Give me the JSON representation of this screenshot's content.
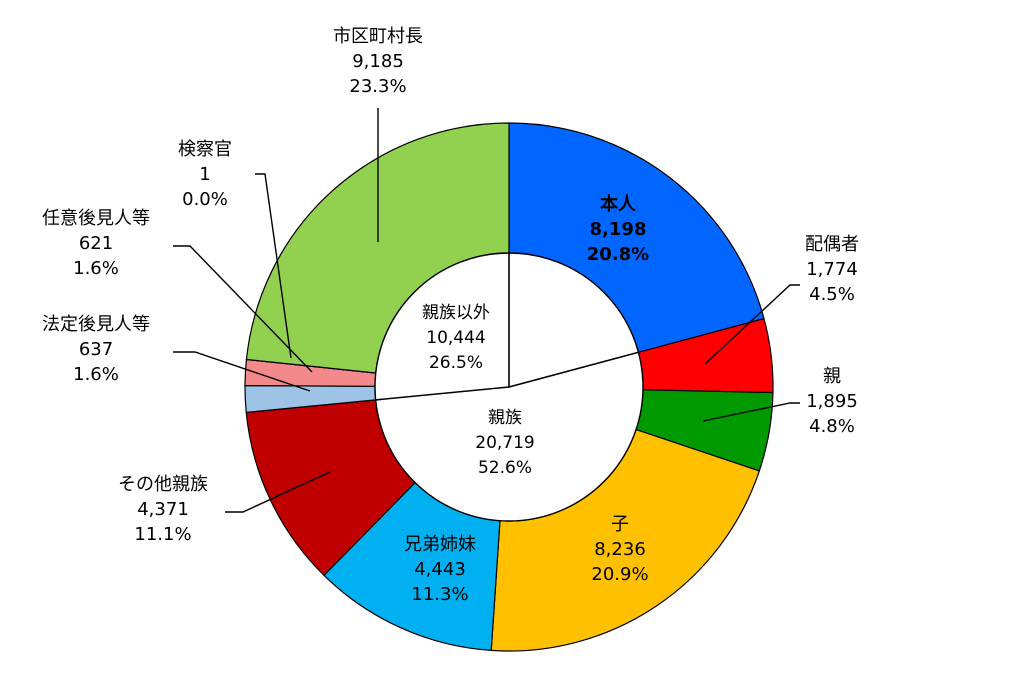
{
  "chart_data": {
    "type": "pie",
    "outer_ring": [
      {
        "name": "本人",
        "value": "8,198",
        "percent": "20.8%",
        "color": "#0066FF",
        "bold": true
      },
      {
        "name": "配偶者",
        "value": "1,774",
        "percent": "4.5%",
        "color": "#FF0000"
      },
      {
        "name": "親",
        "value": "1,895",
        "percent": "4.8%",
        "color": "#009900"
      },
      {
        "name": "子",
        "value": "8,236",
        "percent": "20.9%",
        "color": "#FFC000"
      },
      {
        "name": "兄弟姉妹",
        "value": "4,443",
        "percent": "11.3%",
        "color": "#00B0F0"
      },
      {
        "name": "その他親族",
        "value": "4,371",
        "percent": "11.1%",
        "color": "#C00000"
      },
      {
        "name": "法定後見人等",
        "value": "637",
        "percent": "1.6%",
        "color": "#9DC3E6"
      },
      {
        "name": "任意後見人等",
        "value": "621",
        "percent": "1.6%",
        "color": "#F4898C"
      },
      {
        "name": "検察官",
        "value": "1",
        "percent": "0.0%",
        "color": "#92D050"
      },
      {
        "name": "市区町村長",
        "value": "9,185",
        "percent": "23.3%",
        "color": "#92D050"
      }
    ],
    "inner_groups": [
      {
        "name": "親族以外",
        "value": "10,444",
        "percent": "26.5%"
      },
      {
        "name": "親族",
        "value": "20,719",
        "percent": "52.6%"
      }
    ]
  }
}
